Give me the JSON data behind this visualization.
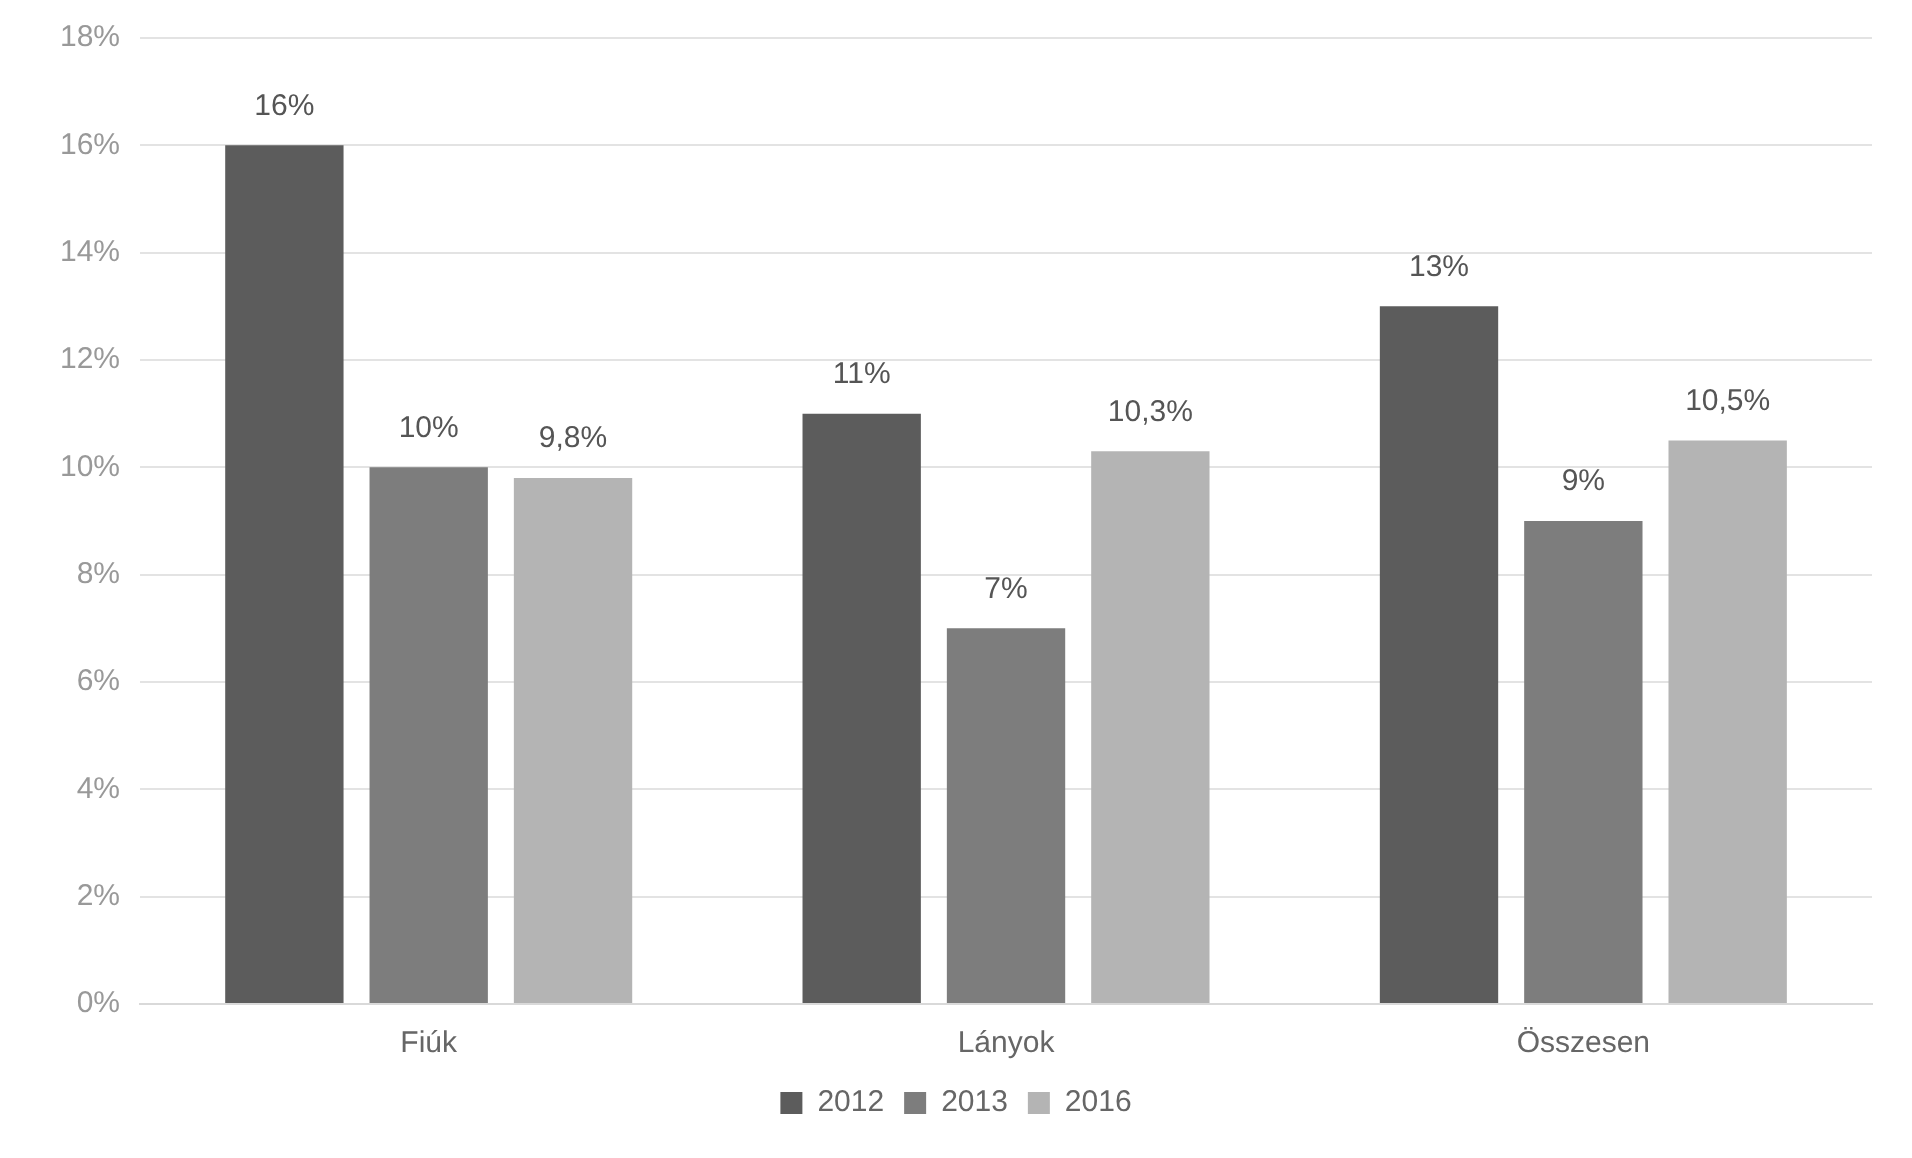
{
  "chart_data": {
    "type": "bar",
    "categories": [
      "Fiúk",
      "Lányok",
      "Összesen"
    ],
    "series": [
      {
        "name": "2012",
        "color": "#5c5c5c",
        "values": [
          16,
          11,
          13
        ],
        "value_labels": [
          "16%",
          "11%",
          "13%"
        ]
      },
      {
        "name": "2013",
        "color": "#7d7d7d",
        "values": [
          10,
          7,
          9
        ],
        "value_labels": [
          "10%",
          "7%",
          "9%"
        ]
      },
      {
        "name": "2016",
        "color": "#b4b4b4",
        "values": [
          9.8,
          10.3,
          10.5
        ],
        "value_labels": [
          "9,8%",
          "10,3%",
          "10,5%"
        ]
      }
    ],
    "ylim": [
      0,
      18
    ],
    "yticks": [
      {
        "value": 0,
        "label": "0%"
      },
      {
        "value": 2,
        "label": "2%"
      },
      {
        "value": 4,
        "label": "4%"
      },
      {
        "value": 6,
        "label": "6%"
      },
      {
        "value": 8,
        "label": "8%"
      },
      {
        "value": 10,
        "label": "10%"
      },
      {
        "value": 12,
        "label": "12%"
      },
      {
        "value": 14,
        "label": "14%"
      },
      {
        "value": 16,
        "label": "16%"
      },
      {
        "value": 18,
        "label": "18%"
      }
    ],
    "grid": "y",
    "legend": "bottom"
  }
}
